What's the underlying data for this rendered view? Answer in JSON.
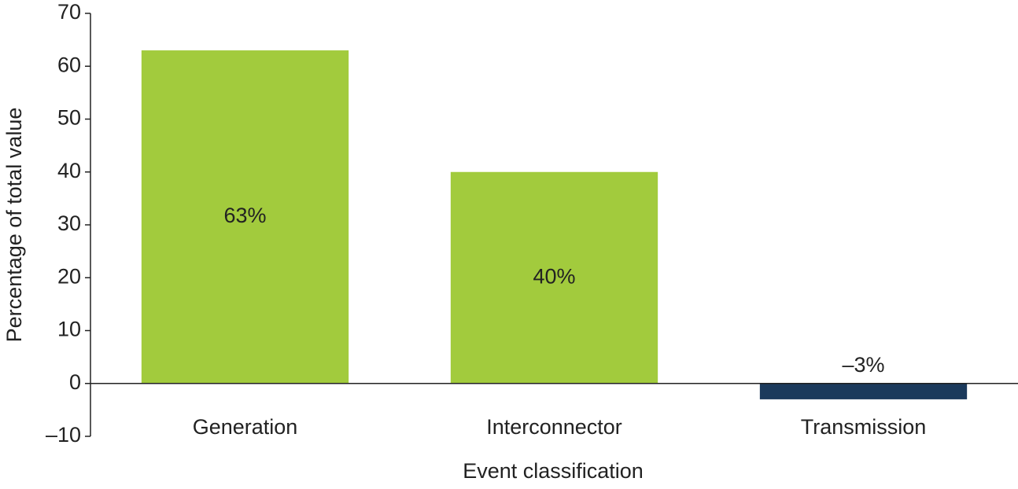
{
  "chart_data": {
    "type": "bar",
    "y_label": "Percentage of total value",
    "x_label": "Event classification",
    "categories": [
      "Generation",
      "Interconnector",
      "Transmission"
    ],
    "values": [
      63,
      40,
      -3
    ],
    "value_labels": [
      "63%",
      "40%",
      "–3%"
    ],
    "colors": [
      "#a2cb3d",
      "#a2cb3d",
      "#1b3a5c"
    ],
    "ylim": [
      -10,
      70
    ],
    "yticks": [
      {
        "value": -10,
        "label": "–10"
      },
      0,
      10,
      20,
      30,
      40,
      50,
      60,
      70
    ],
    "grid": false
  }
}
